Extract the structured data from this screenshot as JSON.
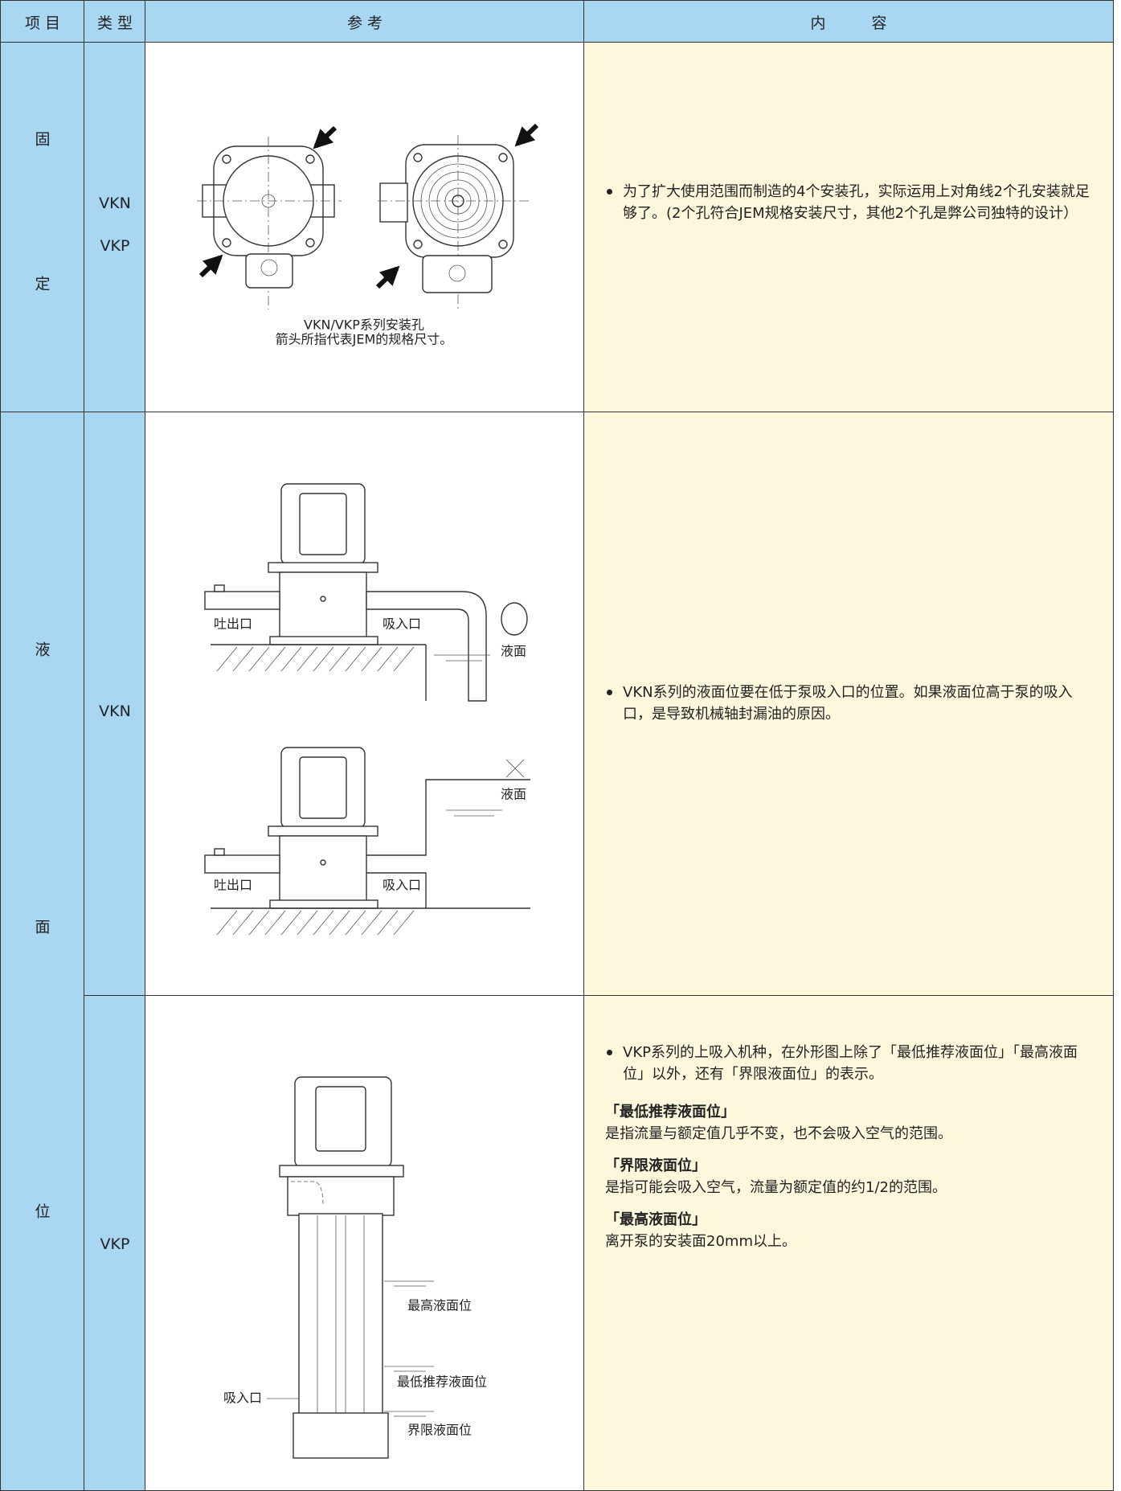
{
  "table": {
    "header": [
      "项 目",
      "类 型",
      "参 考",
      "内　　　容"
    ],
    "item_mounting": [
      "固",
      "定"
    ],
    "item_level": [
      "液",
      "面",
      "位"
    ],
    "mounting": {
      "types": [
        "VKN",
        "VKP"
      ],
      "caption": [
        "VKN/VKP系列安装孔",
        "箭头所指代表JEM的规格尺寸。"
      ],
      "bullet": "为了扩大使用范围而制造的4个安装孔，实际运用上对角线2个孔安装就足够了。(2个孔符合JEM规格安装尺寸，其他2个孔是弊公司独特的设计）"
    },
    "level_vkn": {
      "type": "VKN",
      "labels_top": [
        "吐出口",
        "吸入口",
        "液面"
      ],
      "labels_bottom": [
        "液面",
        "吐出口",
        "吸入口"
      ],
      "bullet": "VKN系列的液面位要在低于泵吸入口的位置。如果液面位高于泵的吸入口，是导致机械轴封漏油的原因。"
    },
    "level_vkp": {
      "type": "VKP",
      "labels": [
        "最高液面位",
        "最低推荐液面位",
        "吸入口",
        "界限液面位"
      ],
      "bullet": "VKP系列的上吸入机种，在外形图上除了「最低推荐液面位」「最高液面位」以外，还有「界限液面位」的表示。",
      "sections": [
        {
          "heading": "「最低推荐液面位」",
          "text": "是指流量与额定值几乎不变，也不会吸入空气的范围。"
        },
        {
          "heading": "「界限液面位」",
          "text": "是指可能会吸入空气，流量为额定值的约1/2的范围。"
        },
        {
          "heading": "「最高液面位」",
          "text": "离开泵的安装面20mm以上。"
        }
      ]
    }
  }
}
